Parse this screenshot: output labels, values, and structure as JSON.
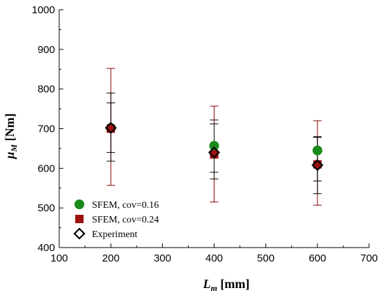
{
  "chart_data": {
    "type": "scatter",
    "title": "",
    "xlabel": {
      "main": "L",
      "sub": "m",
      "unit": " [mm]"
    },
    "ylabel": {
      "main": "μ",
      "sub": "M",
      "unit": " [Nm]"
    },
    "xlim": [
      100,
      700
    ],
    "ylim": [
      400,
      1000
    ],
    "xticks": [
      100,
      200,
      300,
      400,
      500,
      600,
      700
    ],
    "yticks": [
      400,
      500,
      600,
      700,
      800,
      900,
      1000
    ],
    "grid": false,
    "legend_position": "bottom-left",
    "series": [
      {
        "name": "SFEM, cov=0.16",
        "marker": "circle",
        "color": "#1a8a1a",
        "error_color": "#000000",
        "x": [
          200,
          400,
          600
        ],
        "y": [
          702,
          657,
          645
        ],
        "error_low": [
          640,
          590,
          568
        ],
        "error_high": [
          765,
          722,
          680
        ]
      },
      {
        "name": "SFEM, cov=0.24",
        "marker": "square",
        "color": "#a01010",
        "error_color": "#8b0000",
        "x": [
          200,
          400,
          600
        ],
        "y": [
          700,
          635,
          610
        ],
        "error_low": [
          557,
          515,
          507
        ],
        "error_high": [
          852,
          757,
          720
        ]
      },
      {
        "name": "Experiment",
        "marker": "diamond",
        "color": "#000000",
        "error_color": "#000000",
        "x": [
          200,
          400,
          600
        ],
        "y": [
          702,
          640,
          608
        ],
        "error_low": [
          618,
          573,
          536
        ],
        "error_high": [
          790,
          712,
          678
        ]
      }
    ]
  }
}
